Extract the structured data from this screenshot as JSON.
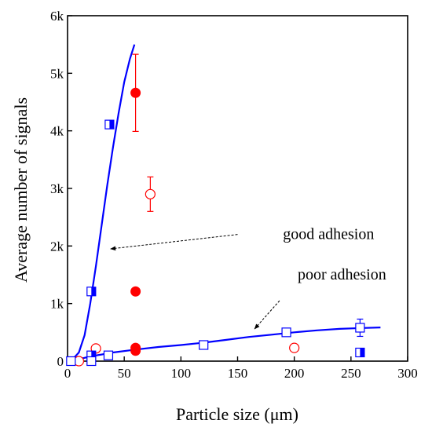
{
  "chart_data": {
    "type": "scatter",
    "xlabel": "Particle size (μm)",
    "ylabel": "Average number of signals",
    "xlim": [
      0,
      300
    ],
    "ylim": [
      0,
      6000
    ],
    "x_ticks": [
      0,
      50,
      100,
      150,
      200,
      250,
      300
    ],
    "y_ticks": [
      0,
      1000,
      2000,
      3000,
      4000,
      5000,
      6000
    ],
    "x_tick_labels": [
      "0",
      "50",
      "100",
      "150",
      "200",
      "250",
      "300"
    ],
    "y_tick_labels": [
      "0",
      "1k",
      "2k",
      "3k",
      "4k",
      "5k",
      "6k"
    ],
    "grid": false,
    "series": [
      {
        "marker": "circle-filled",
        "color": "#ff0000",
        "points": [
          {
            "x": 60,
            "y": 4660,
            "err": 670
          },
          {
            "x": 60,
            "y": 1210
          },
          {
            "x": 60,
            "y": 230
          },
          {
            "x": 60,
            "y": 180
          }
        ]
      },
      {
        "marker": "circle-open",
        "color": "#ff0000",
        "points": [
          {
            "x": 10,
            "y": 0
          },
          {
            "x": 25,
            "y": 220
          },
          {
            "x": 73,
            "y": 2900,
            "err": 300
          },
          {
            "x": 200,
            "y": 230
          }
        ]
      },
      {
        "marker": "square-half",
        "color": "#0000ff",
        "points": [
          {
            "x": 37,
            "y": 4110
          },
          {
            "x": 21,
            "y": 1210
          },
          {
            "x": 21,
            "y": 100
          },
          {
            "x": 258,
            "y": 150
          }
        ]
      },
      {
        "marker": "square-open",
        "color": "#0000ff",
        "points": [
          {
            "x": 3,
            "y": 0
          },
          {
            "x": 21,
            "y": 0
          },
          {
            "x": 36,
            "y": 100
          },
          {
            "x": 120,
            "y": 280
          },
          {
            "x": 193,
            "y": 500
          },
          {
            "x": 258,
            "y": 580,
            "err": 150
          }
        ]
      }
    ],
    "fits": [
      {
        "color": "#0000ff",
        "points": [
          [
            3,
            0
          ],
          [
            10,
            150
          ],
          [
            15,
            450
          ],
          [
            20,
            1000
          ],
          [
            25,
            1650
          ],
          [
            30,
            2350
          ],
          [
            35,
            3050
          ],
          [
            40,
            3700
          ],
          [
            45,
            4300
          ],
          [
            50,
            4850
          ],
          [
            55,
            5250
          ],
          [
            59,
            5500
          ]
        ]
      },
      {
        "color": "#0000ff",
        "points": [
          [
            3,
            0
          ],
          [
            20,
            80
          ],
          [
            40,
            150
          ],
          [
            60,
            200
          ],
          [
            80,
            245
          ],
          [
            100,
            280
          ],
          [
            120,
            320
          ],
          [
            140,
            370
          ],
          [
            160,
            420
          ],
          [
            180,
            460
          ],
          [
            200,
            500
          ],
          [
            220,
            535
          ],
          [
            240,
            560
          ],
          [
            260,
            575
          ],
          [
            276,
            585
          ]
        ]
      }
    ],
    "annotations": [
      {
        "text": "good adhesion",
        "x": 190,
        "y": 2200,
        "arrow_from": [
          150,
          2200
        ],
        "arrow_to": [
          38,
          1950
        ]
      },
      {
        "text": "poor adhesion",
        "x": 203,
        "y": 1500,
        "arrow_from": [
          187,
          1050
        ],
        "arrow_to": [
          165,
          560
        ]
      }
    ]
  }
}
